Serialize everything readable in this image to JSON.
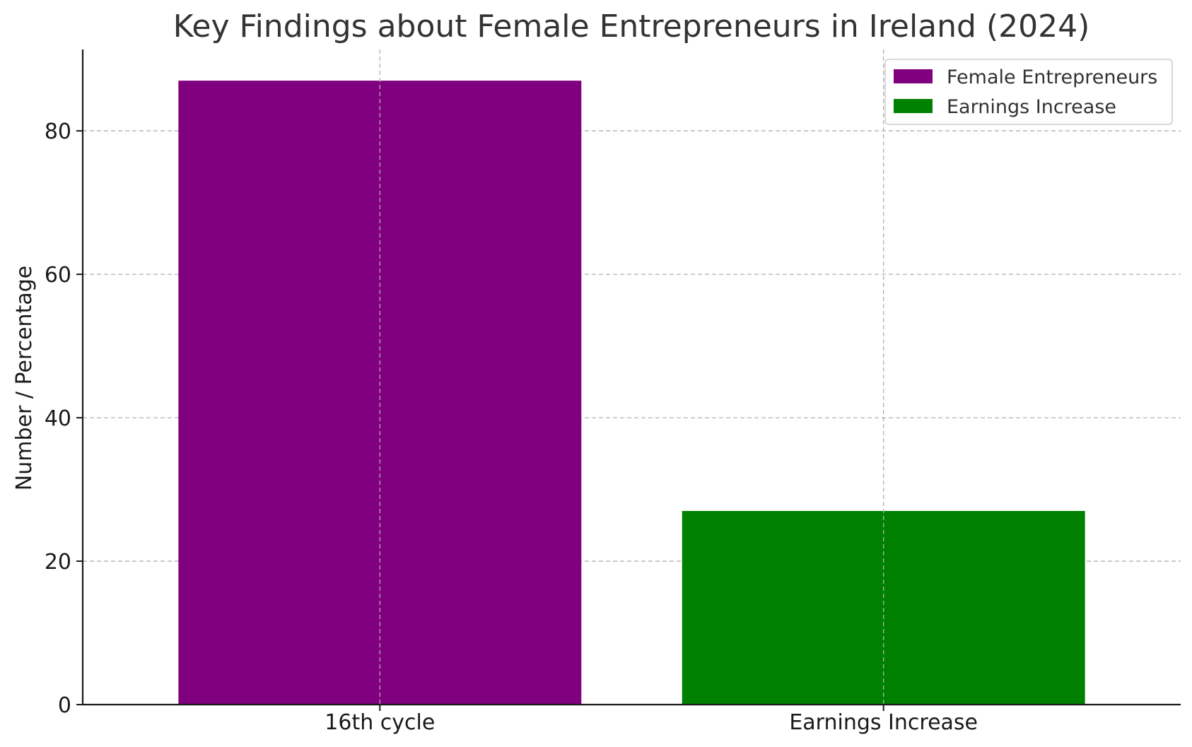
{
  "chart_data": {
    "type": "bar",
    "title": "Key Findings about Female Entrepreneurs in Ireland (2024)",
    "xlabel": "",
    "ylabel": "Number / Percentage",
    "categories": [
      "16th cycle",
      "Earnings Increase"
    ],
    "series": [
      {
        "name": "Female Entrepreneurs",
        "category": "16th cycle",
        "value": 87,
        "color": "#800080"
      },
      {
        "name": "Earnings Increase",
        "category": "Earnings Increase",
        "value": 27,
        "color": "#008000"
      }
    ],
    "ylim": [
      0,
      91.35
    ],
    "yticks": [
      0,
      20,
      40,
      60,
      80
    ],
    "grid": true,
    "legend_position": "top-right"
  }
}
